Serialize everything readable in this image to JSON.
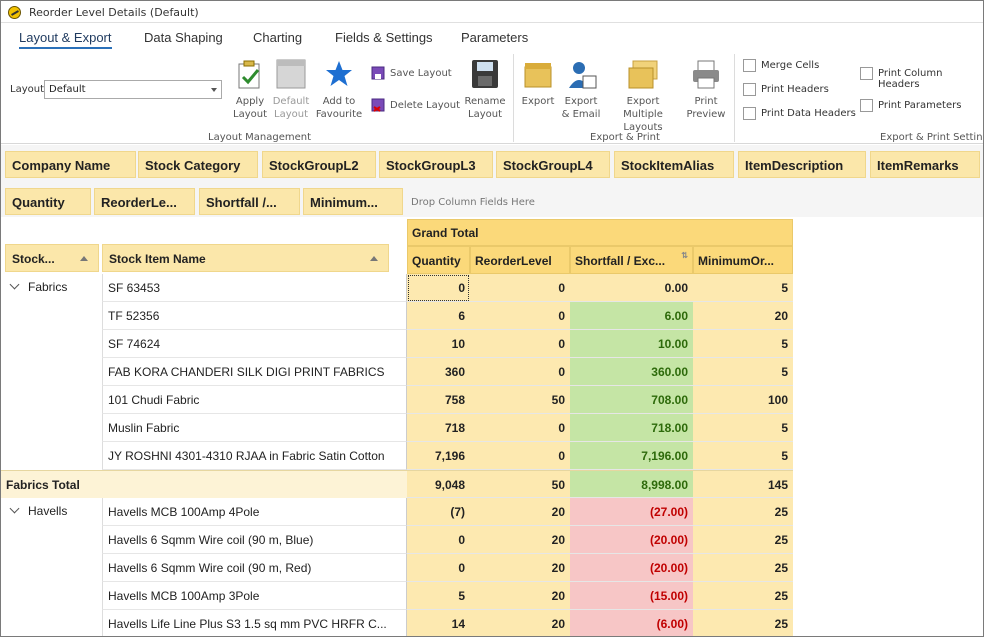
{
  "window": {
    "title": "Reorder Level Details (Default)"
  },
  "tabs": [
    "Layout & Export",
    "Data Shaping",
    "Charting",
    "Fields & Settings",
    "Parameters"
  ],
  "ribbon": {
    "layout_label": "Layout",
    "layout_value": "Default",
    "apply_layout": "Apply Layout",
    "default_layout": "Default Layout",
    "add_favourite": "Add to Favourite",
    "save_layout": "Save Layout",
    "delete_layout": "Delete Layout",
    "rename_layout": "Rename Layout",
    "layout_group": "Layout Management",
    "export": "Export",
    "export_email": "Export & Email",
    "export_multiple": "Export Multiple Layouts",
    "print_preview": "Print Preview",
    "export_group": "Export & Print",
    "merge_cells": "Merge Cells",
    "print_headers": "Print Headers",
    "print_data_headers": "Print Data Headers",
    "print_column_headers": "Print Column Headers",
    "print_parameters": "Print Parameters",
    "settings_group": "Export & Print Settings"
  },
  "filter_fields": [
    "Company Name",
    "Stock Category",
    "StockGroupL2",
    "StockGroupL3",
    "StockGroupL4",
    "StockItemAlias",
    "ItemDescription",
    "ItemRemarks"
  ],
  "data_fields": [
    "Quantity",
    "ReorderLe...",
    "Shortfall /...",
    "Minimum..."
  ],
  "drop_hint": "Drop Column Fields Here",
  "row_headers": [
    "Stock...",
    "Stock Item Name"
  ],
  "grand_total": "Grand Total",
  "columns": [
    "Quantity",
    "ReorderLevel",
    "Shortfall / Exc...",
    "MinimumOr..."
  ],
  "groups": [
    {
      "name": "Fabrics",
      "rows": [
        {
          "item": "SF 63453",
          "q": "0",
          "r": "0",
          "s": "0.00",
          "m": "5",
          "sign": "zero"
        },
        {
          "item": "TF 52356",
          "q": "6",
          "r": "0",
          "s": "6.00",
          "m": "20",
          "sign": "pos"
        },
        {
          "item": "SF 74624",
          "q": "10",
          "r": "0",
          "s": "10.00",
          "m": "5",
          "sign": "pos"
        },
        {
          "item": "FAB KORA CHANDERI SILK DIGI PRINT FABRICS",
          "q": "360",
          "r": "0",
          "s": "360.00",
          "m": "5",
          "sign": "pos"
        },
        {
          "item": "101 Chudi Fabric",
          "q": "758",
          "r": "50",
          "s": "708.00",
          "m": "100",
          "sign": "pos"
        },
        {
          "item": "Muslin Fabric",
          "q": "718",
          "r": "0",
          "s": "718.00",
          "m": "5",
          "sign": "pos"
        },
        {
          "item": "JY ROSHNI 4301-4310 RJAA in Fabric Satin Cotton",
          "q": "7,196",
          "r": "0",
          "s": "7,196.00",
          "m": "5",
          "sign": "pos"
        }
      ],
      "total_label": "Fabrics Total",
      "total": {
        "q": "9,048",
        "r": "50",
        "s": "8,998.00",
        "m": "145"
      }
    },
    {
      "name": "Havells",
      "rows": [
        {
          "item": "Havells MCB 100Amp 4Pole",
          "q": "(7)",
          "r": "20",
          "s": "(27.00)",
          "m": "25",
          "sign": "neg"
        },
        {
          "item": "Havells 6 Sqmm Wire coil (90 m, Blue)",
          "q": "0",
          "r": "20",
          "s": "(20.00)",
          "m": "25",
          "sign": "neg"
        },
        {
          "item": "Havells 6 Sqmm Wire coil (90 m, Red)",
          "q": "0",
          "r": "20",
          "s": "(20.00)",
          "m": "25",
          "sign": "neg"
        },
        {
          "item": "Havells MCB 100Amp 3Pole",
          "q": "5",
          "r": "20",
          "s": "(15.00)",
          "m": "25",
          "sign": "neg"
        },
        {
          "item": "Havells Life Line Plus S3 1.5 sq mm PVC HRFR C...",
          "q": "14",
          "r": "20",
          "s": "(6.00)",
          "m": "25",
          "sign": "neg"
        }
      ]
    }
  ]
}
